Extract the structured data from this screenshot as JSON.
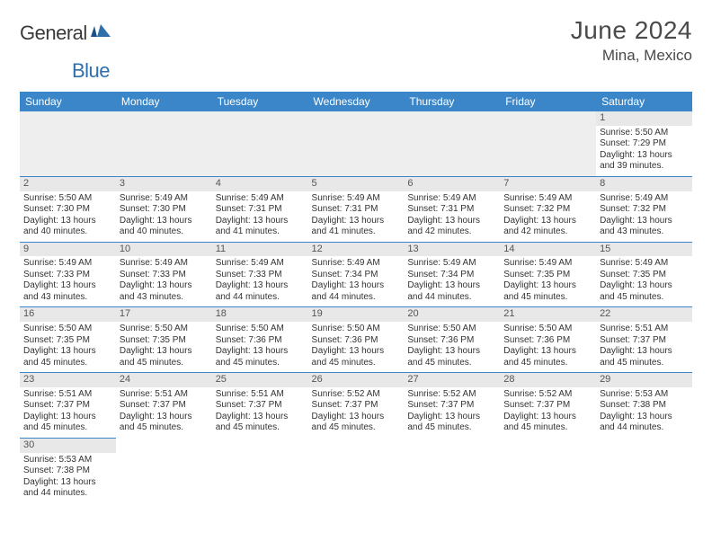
{
  "branding": {
    "logo_general": "General",
    "logo_blue": "Blue",
    "logo_color_general": "#3a3a3a",
    "logo_color_blue": "#2f6fab"
  },
  "header": {
    "month_title": "June 2024",
    "location": "Mina, Mexico"
  },
  "theme": {
    "header_bg": "#3a86c8",
    "header_fg": "#ffffff",
    "cell_border": "#3a86c8",
    "daynum_bg": "#e8e8e8",
    "text_color": "#333333"
  },
  "days_of_week": [
    "Sunday",
    "Monday",
    "Tuesday",
    "Wednesday",
    "Thursday",
    "Friday",
    "Saturday"
  ],
  "labels": {
    "sunrise": "Sunrise:",
    "sunset": "Sunset:",
    "daylight": "Daylight:"
  },
  "weeks": [
    [
      null,
      null,
      null,
      null,
      null,
      null,
      {
        "n": "1",
        "sunrise": "5:50 AM",
        "sunset": "7:29 PM",
        "daylight": "13 hours and 39 minutes."
      }
    ],
    [
      {
        "n": "2",
        "sunrise": "5:50 AM",
        "sunset": "7:30 PM",
        "daylight": "13 hours and 40 minutes."
      },
      {
        "n": "3",
        "sunrise": "5:49 AM",
        "sunset": "7:30 PM",
        "daylight": "13 hours and 40 minutes."
      },
      {
        "n": "4",
        "sunrise": "5:49 AM",
        "sunset": "7:31 PM",
        "daylight": "13 hours and 41 minutes."
      },
      {
        "n": "5",
        "sunrise": "5:49 AM",
        "sunset": "7:31 PM",
        "daylight": "13 hours and 41 minutes."
      },
      {
        "n": "6",
        "sunrise": "5:49 AM",
        "sunset": "7:31 PM",
        "daylight": "13 hours and 42 minutes."
      },
      {
        "n": "7",
        "sunrise": "5:49 AM",
        "sunset": "7:32 PM",
        "daylight": "13 hours and 42 minutes."
      },
      {
        "n": "8",
        "sunrise": "5:49 AM",
        "sunset": "7:32 PM",
        "daylight": "13 hours and 43 minutes."
      }
    ],
    [
      {
        "n": "9",
        "sunrise": "5:49 AM",
        "sunset": "7:33 PM",
        "daylight": "13 hours and 43 minutes."
      },
      {
        "n": "10",
        "sunrise": "5:49 AM",
        "sunset": "7:33 PM",
        "daylight": "13 hours and 43 minutes."
      },
      {
        "n": "11",
        "sunrise": "5:49 AM",
        "sunset": "7:33 PM",
        "daylight": "13 hours and 44 minutes."
      },
      {
        "n": "12",
        "sunrise": "5:49 AM",
        "sunset": "7:34 PM",
        "daylight": "13 hours and 44 minutes."
      },
      {
        "n": "13",
        "sunrise": "5:49 AM",
        "sunset": "7:34 PM",
        "daylight": "13 hours and 44 minutes."
      },
      {
        "n": "14",
        "sunrise": "5:49 AM",
        "sunset": "7:35 PM",
        "daylight": "13 hours and 45 minutes."
      },
      {
        "n": "15",
        "sunrise": "5:49 AM",
        "sunset": "7:35 PM",
        "daylight": "13 hours and 45 minutes."
      }
    ],
    [
      {
        "n": "16",
        "sunrise": "5:50 AM",
        "sunset": "7:35 PM",
        "daylight": "13 hours and 45 minutes."
      },
      {
        "n": "17",
        "sunrise": "5:50 AM",
        "sunset": "7:35 PM",
        "daylight": "13 hours and 45 minutes."
      },
      {
        "n": "18",
        "sunrise": "5:50 AM",
        "sunset": "7:36 PM",
        "daylight": "13 hours and 45 minutes."
      },
      {
        "n": "19",
        "sunrise": "5:50 AM",
        "sunset": "7:36 PM",
        "daylight": "13 hours and 45 minutes."
      },
      {
        "n": "20",
        "sunrise": "5:50 AM",
        "sunset": "7:36 PM",
        "daylight": "13 hours and 45 minutes."
      },
      {
        "n": "21",
        "sunrise": "5:50 AM",
        "sunset": "7:36 PM",
        "daylight": "13 hours and 45 minutes."
      },
      {
        "n": "22",
        "sunrise": "5:51 AM",
        "sunset": "7:37 PM",
        "daylight": "13 hours and 45 minutes."
      }
    ],
    [
      {
        "n": "23",
        "sunrise": "5:51 AM",
        "sunset": "7:37 PM",
        "daylight": "13 hours and 45 minutes."
      },
      {
        "n": "24",
        "sunrise": "5:51 AM",
        "sunset": "7:37 PM",
        "daylight": "13 hours and 45 minutes."
      },
      {
        "n": "25",
        "sunrise": "5:51 AM",
        "sunset": "7:37 PM",
        "daylight": "13 hours and 45 minutes."
      },
      {
        "n": "26",
        "sunrise": "5:52 AM",
        "sunset": "7:37 PM",
        "daylight": "13 hours and 45 minutes."
      },
      {
        "n": "27",
        "sunrise": "5:52 AM",
        "sunset": "7:37 PM",
        "daylight": "13 hours and 45 minutes."
      },
      {
        "n": "28",
        "sunrise": "5:52 AM",
        "sunset": "7:37 PM",
        "daylight": "13 hours and 45 minutes."
      },
      {
        "n": "29",
        "sunrise": "5:53 AM",
        "sunset": "7:38 PM",
        "daylight": "13 hours and 44 minutes."
      }
    ],
    [
      {
        "n": "30",
        "sunrise": "5:53 AM",
        "sunset": "7:38 PM",
        "daylight": "13 hours and 44 minutes."
      },
      null,
      null,
      null,
      null,
      null,
      null
    ]
  ]
}
